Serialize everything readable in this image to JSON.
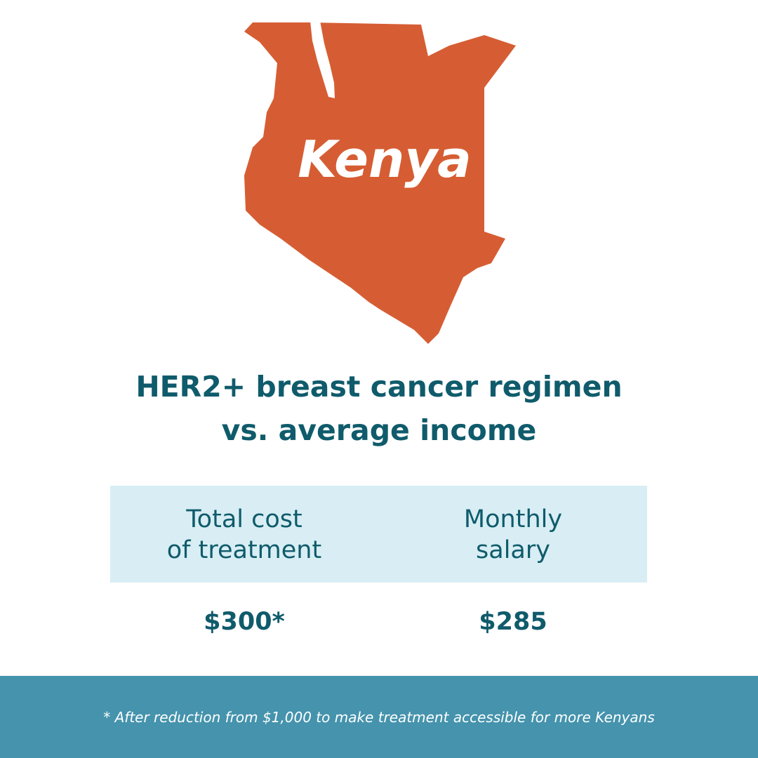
{
  "map_label": "Kenya",
  "title": "HER2+ breast cancer regimen\nvs. average income",
  "table": {
    "headers": [
      "Total cost\nof treatment",
      "Monthly\nsalary"
    ],
    "rows": [
      [
        "$300*",
        "$285"
      ]
    ]
  },
  "footnote": "* After reduction from $1,000 to make treatment accessible for more Kenyans"
}
